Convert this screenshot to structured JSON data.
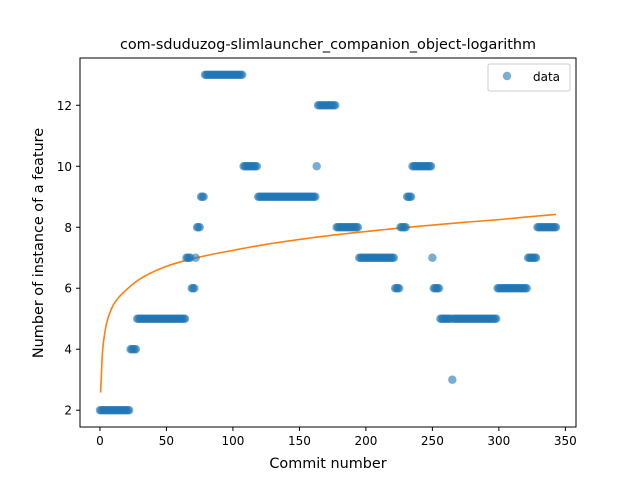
{
  "chart_data": {
    "type": "scatter",
    "title": "com-sduduzog-slimlauncher_companion_object-logarithm",
    "xlabel": "Commit number",
    "ylabel": "Number of instance of a feature",
    "xlim": [
      -15,
      358
    ],
    "ylim": [
      1.45,
      13.55
    ],
    "xticks": [
      0,
      50,
      100,
      150,
      200,
      250,
      300,
      350
    ],
    "yticks": [
      2,
      4,
      6,
      8,
      10,
      12
    ],
    "grid": false,
    "legend_position": "top-right",
    "colors": {
      "data": "#1f77b4",
      "fit": "#ff7f0e"
    },
    "series": [
      {
        "name": "data",
        "kind": "points",
        "runs": [
          [
            0,
            22,
            2
          ],
          [
            23,
            27,
            4
          ],
          [
            28,
            64,
            5
          ],
          [
            65,
            68,
            7
          ],
          [
            69,
            71,
            6
          ],
          [
            72,
            72,
            7
          ],
          [
            73,
            75,
            8
          ],
          [
            76,
            78,
            9
          ],
          [
            79,
            107,
            13
          ],
          [
            108,
            118,
            10
          ],
          [
            119,
            162,
            9
          ],
          [
            163,
            163,
            10
          ],
          [
            164,
            177,
            12
          ],
          [
            178,
            194,
            8
          ],
          [
            195,
            221,
            7
          ],
          [
            222,
            225,
            6
          ],
          [
            226,
            230,
            8
          ],
          [
            231,
            234,
            9
          ],
          [
            235,
            249,
            10
          ],
          [
            250,
            250,
            7
          ],
          [
            251,
            255,
            6
          ],
          [
            256,
            264,
            5
          ],
          [
            265,
            265,
            3
          ],
          [
            266,
            298,
            5
          ],
          [
            299,
            321,
            6
          ],
          [
            322,
            328,
            7
          ],
          [
            329,
            343,
            8
          ]
        ]
      },
      {
        "kind": "fit",
        "model": "logarithm",
        "x_range": [
          0.5,
          343
        ],
        "samples": [
          [
            0.5,
            2.58
          ],
          [
            1,
            3.05
          ],
          [
            2,
            3.95
          ],
          [
            5,
            4.85
          ],
          [
            10,
            5.45
          ],
          [
            20,
            5.95
          ],
          [
            30,
            6.3
          ],
          [
            50,
            6.72
          ],
          [
            100,
            7.24
          ],
          [
            150,
            7.6
          ],
          [
            200,
            7.86
          ],
          [
            250,
            8.07
          ],
          [
            300,
            8.25
          ],
          [
            343,
            8.42
          ]
        ]
      }
    ]
  }
}
